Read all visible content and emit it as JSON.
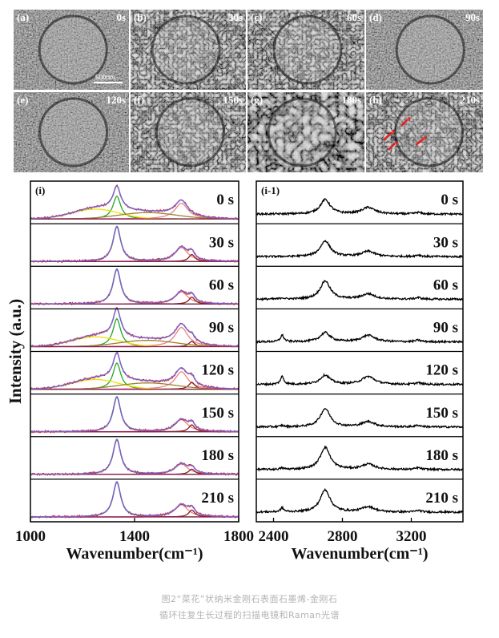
{
  "sem": {
    "panels": [
      {
        "label": "(a)",
        "time": "0s"
      },
      {
        "label": "(b)",
        "time": "30s"
      },
      {
        "label": "(c)",
        "time": "60s"
      },
      {
        "label": "(d)",
        "time": "90s"
      },
      {
        "label": "(e)",
        "time": "120s"
      },
      {
        "label": "(f)",
        "time": "150s"
      },
      {
        "label": "(g)",
        "time": "180s"
      },
      {
        "label": "(h)",
        "time": "210s"
      }
    ],
    "scale_bar": "500nm"
  },
  "chart_data": [
    {
      "type": "line",
      "panel_label": "(i)",
      "xlabel": "Wavenumber(cm⁻¹)",
      "ylabel": "Intensity (a.u.)",
      "xlim": [
        1000,
        1800
      ],
      "xticks": [
        1000,
        1400,
        1800
      ],
      "peaks": [
        1332,
        1580,
        1620
      ],
      "series": [
        {
          "name": "0 s",
          "diamond_1332": 0.65,
          "g_1580": 0.45,
          "d_1620": 0.0,
          "broad": true
        },
        {
          "name": "30 s",
          "diamond_1332": 1.0,
          "g_1580": 0.4,
          "d_1620": 0.2,
          "broad": false
        },
        {
          "name": "60 s",
          "diamond_1332": 1.0,
          "g_1580": 0.35,
          "d_1620": 0.2,
          "broad": false
        },
        {
          "name": "90 s",
          "diamond_1332": 0.8,
          "g_1580": 0.55,
          "d_1620": 0.15,
          "broad": true
        },
        {
          "name": "120 s",
          "diamond_1332": 0.75,
          "g_1580": 0.5,
          "d_1620": 0.2,
          "broad": true
        },
        {
          "name": "150 s",
          "diamond_1332": 1.0,
          "g_1580": 0.35,
          "d_1620": 0.2,
          "broad": false
        },
        {
          "name": "180 s",
          "diamond_1332": 1.0,
          "g_1580": 0.3,
          "d_1620": 0.15,
          "broad": false
        },
        {
          "name": "210 s",
          "diamond_1332": 1.0,
          "g_1580": 0.35,
          "d_1620": 0.2,
          "broad": false
        }
      ]
    },
    {
      "type": "line",
      "panel_label": "(i-1)",
      "xlabel": "Wavenumber(cm⁻¹)",
      "xlim": [
        2300,
        3500
      ],
      "xticks": [
        2400,
        2800,
        3200
      ],
      "peaks": [
        2450,
        2700,
        2950,
        3240
      ],
      "series": [
        {
          "name": "0 s",
          "p2450": 0.0,
          "p2700": 0.55,
          "p2950": 0.25
        },
        {
          "name": "30 s",
          "p2450": 0.0,
          "p2700": 0.6,
          "p2950": 0.2
        },
        {
          "name": "60 s",
          "p2450": 0.05,
          "p2700": 0.7,
          "p2950": 0.2
        },
        {
          "name": "90 s",
          "p2450": 0.25,
          "p2700": 0.35,
          "p2950": 0.25
        },
        {
          "name": "120 s",
          "p2450": 0.3,
          "p2700": 0.35,
          "p2950": 0.3
        },
        {
          "name": "150 s",
          "p2450": 0.05,
          "p2700": 0.7,
          "p2950": 0.2
        },
        {
          "name": "180 s",
          "p2450": 0.05,
          "p2700": 0.85,
          "p2950": 0.2
        },
        {
          "name": "210 s",
          "p2450": 0.15,
          "p2700": 0.85,
          "p2950": 0.2
        }
      ]
    }
  ],
  "caption": {
    "line1": "图2“菜花”状纳米金刚石表面石墨烯-金刚石",
    "line2": "循环往复生长过程的扫描电镜和Raman光谱"
  },
  "colors": {
    "raw": "#e01515",
    "fit": "#6b6bd9",
    "diamond": "#22a822",
    "g_band": "#f08080",
    "broad1": "#f2e000",
    "broad2": "#a08030",
    "d_prime": "#8b1a1a",
    "baseline": "#8a1a5a"
  }
}
